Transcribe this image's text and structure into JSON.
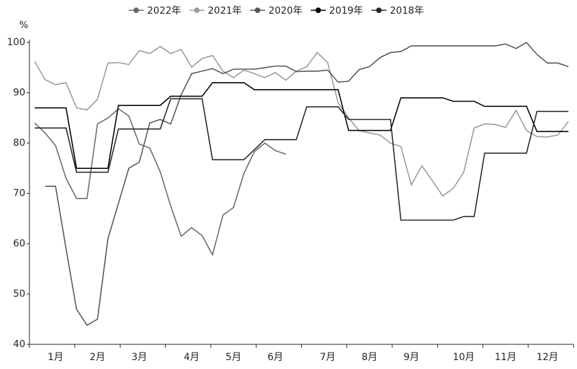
{
  "chart_data": {
    "type": "line",
    "y_label": "%",
    "categories": [
      null,
      null,
      "1月",
      null,
      null,
      null,
      "2月",
      null,
      null,
      null,
      "3月",
      null,
      null,
      null,
      null,
      "4月",
      null,
      null,
      null,
      "5月",
      null,
      null,
      null,
      "6月",
      null,
      null,
      null,
      null,
      "7月",
      null,
      null,
      null,
      "8月",
      null,
      null,
      null,
      "9月",
      null,
      null,
      null,
      null,
      "10月",
      null,
      null,
      null,
      "11月",
      null,
      null,
      null,
      "12月",
      null,
      null
    ],
    "ylim": [
      40,
      100
    ],
    "yticks": [
      40,
      50,
      60,
      70,
      80,
      90,
      100
    ],
    "series": [
      {
        "name": "2022年",
        "color": "#6a6a6a",
        "values": [
          84,
          82,
          79.5,
          73,
          69,
          69,
          83.8,
          85,
          86.8,
          85.4,
          79.8,
          79,
          74.3,
          67.5,
          61.5,
          63.2,
          61.6,
          57.8,
          65.7,
          67.2,
          74,
          78.3,
          80,
          78.5,
          77.8,
          null,
          null,
          null,
          null,
          null,
          null,
          null,
          null,
          null,
          null,
          null,
          null,
          null,
          null,
          null,
          null,
          null,
          null,
          null,
          null,
          null,
          null,
          null,
          null,
          null,
          null,
          null
        ]
      },
      {
        "name": "2021年",
        "color": "#9a9a9a",
        "values": [
          96.2,
          92.6,
          91.6,
          92.0,
          87.0,
          86.6,
          88.7,
          95.9,
          96.0,
          95.6,
          98.4,
          97.8,
          99.2,
          97.8,
          98.6,
          95.1,
          96.8,
          97.4,
          94.3,
          93.0,
          94.5,
          93.8,
          93.0,
          94.0,
          92.5,
          94.3,
          95.2,
          98.0,
          96.0,
          88.0,
          85.0,
          82.5,
          82.0,
          81.6,
          80.0,
          79.3,
          71.7,
          75.5,
          72.5,
          69.5,
          71.0,
          74.2,
          83.0,
          83.8,
          83.7,
          83.1,
          86.5,
          82.5,
          81.3,
          81.2,
          81.6,
          84.3
        ]
      },
      {
        "name": "2020年",
        "color": "#555555",
        "values": [
          null,
          71.4,
          71.4,
          59,
          47,
          43.8,
          45,
          61,
          68,
          75,
          76.2,
          84,
          84.7,
          83.8,
          89.6,
          93.8,
          94.3,
          94.8,
          93.8,
          94.7,
          94.7,
          94.7,
          95,
          95.3,
          95.3,
          94.2,
          94.3,
          94.3,
          94.5,
          92.1,
          92.3,
          94.6,
          95.2,
          97,
          98,
          98.2,
          99.3,
          99.3,
          99.3,
          99.3,
          99.3,
          99.3,
          99.3,
          99.3,
          99.3,
          99.7,
          98.8,
          100,
          97.6,
          95.9,
          95.9,
          95.2
        ]
      },
      {
        "name": "2019年",
        "color": "#000000",
        "values": [
          87,
          87,
          87,
          87,
          75,
          75,
          75,
          75,
          87.5,
          87.5,
          87.5,
          87.5,
          87.5,
          89.3,
          89.3,
          89.3,
          89.3,
          92,
          92,
          92,
          92,
          90.6,
          90.6,
          90.6,
          90.6,
          90.6,
          90.6,
          90.6,
          90.6,
          90.6,
          82.5,
          82.5,
          82.5,
          82.5,
          82.5,
          89,
          89,
          89,
          89,
          89,
          88.3,
          88.3,
          88.3,
          87.3,
          87.3,
          87.3,
          87.3,
          87.3,
          82.3,
          82.3,
          82.3,
          82.3
        ]
      },
      {
        "name": "2018年",
        "color": "#262626",
        "values": [
          83,
          83,
          83,
          83,
          74.2,
          74.2,
          74.2,
          74.2,
          82.8,
          82.8,
          82.8,
          82.8,
          82.8,
          88.8,
          88.8,
          88.8,
          88.8,
          76.7,
          76.7,
          76.7,
          76.7,
          78.7,
          80.7,
          80.7,
          80.7,
          80.7,
          87.2,
          87.2,
          87.2,
          87.2,
          84.7,
          84.7,
          84.7,
          84.7,
          84.7,
          64.7,
          64.7,
          64.7,
          64.7,
          64.7,
          64.7,
          65.4,
          65.4,
          78,
          78,
          78,
          78,
          78,
          86.3,
          86.3,
          86.3,
          86.3
        ]
      }
    ]
  }
}
